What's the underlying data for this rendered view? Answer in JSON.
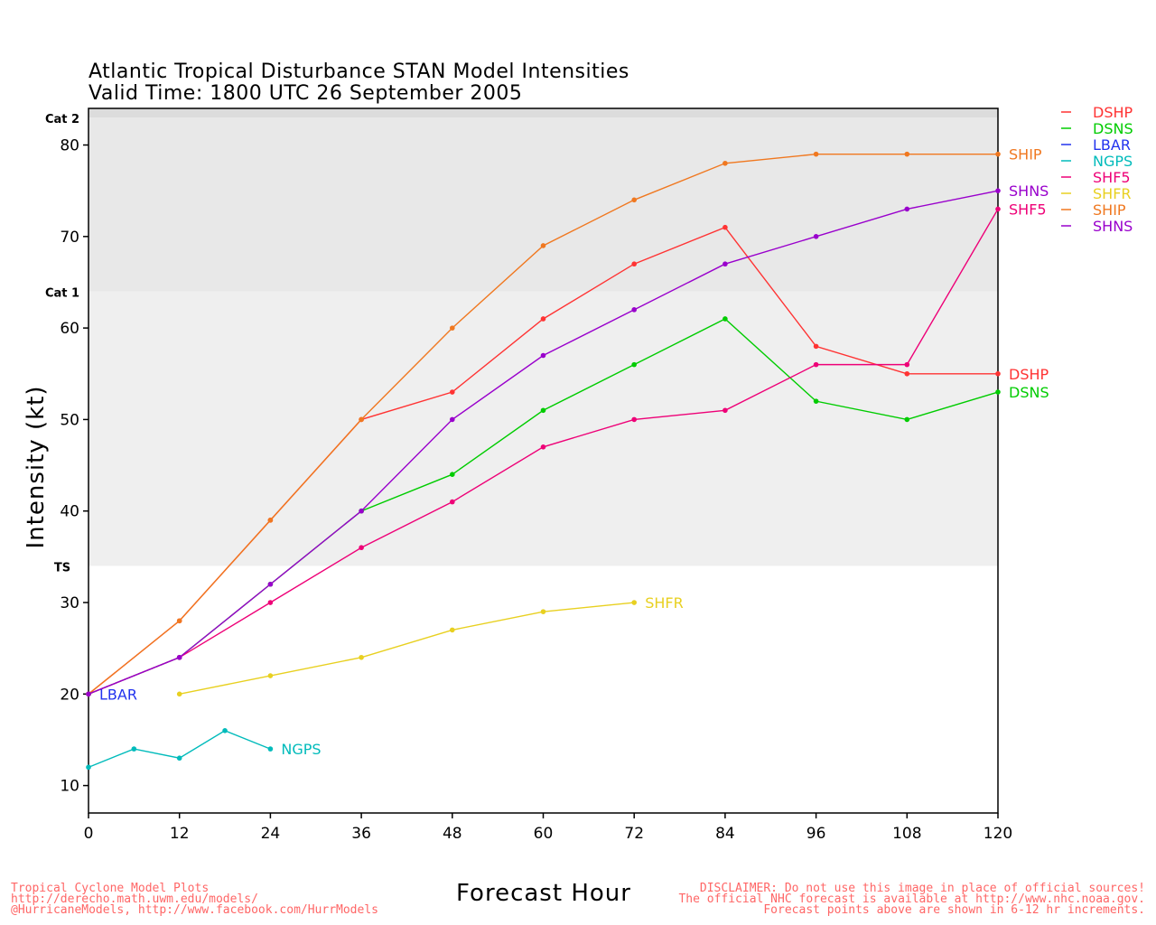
{
  "chart_data": {
    "type": "line",
    "title": "Atlantic Tropical Disturbance STAN Model Intensities",
    "subtitle": "Valid Time: 1800 UTC 26 September 2005",
    "xlabel": "Forecast Hour",
    "ylabel": "Intensity (kt)",
    "xlim": [
      0,
      120
    ],
    "ylim": [
      7,
      84
    ],
    "x_ticks": [
      0,
      12,
      24,
      36,
      48,
      60,
      72,
      84,
      96,
      108,
      120
    ],
    "y_ticks": [
      10,
      20,
      30,
      40,
      50,
      60,
      70,
      80
    ],
    "category_bands": [
      {
        "label": "TS",
        "from": 34,
        "to": 64,
        "color": "#efefef"
      },
      {
        "label": "Cat 1",
        "from": 64,
        "to": 83,
        "color": "#e8e8e8"
      },
      {
        "label": "Cat 2",
        "from": 83,
        "to": 84,
        "color": "#dcdcdc"
      }
    ],
    "legend_position": "right",
    "series": [
      {
        "name": "DSHP",
        "color": "#ff3333",
        "x": [
          0,
          12,
          24,
          36,
          48,
          60,
          72,
          84,
          96,
          108,
          120
        ],
        "y": [
          20,
          28,
          39,
          50,
          53,
          61,
          67,
          71,
          58,
          55,
          55
        ]
      },
      {
        "name": "DSNS",
        "color": "#00cc00",
        "x": [
          0,
          12,
          24,
          36,
          48,
          60,
          72,
          84,
          96,
          108,
          120
        ],
        "y": [
          20,
          24,
          32,
          40,
          44,
          51,
          56,
          61,
          52,
          50,
          53
        ]
      },
      {
        "name": "LBAR",
        "color": "#2233ee",
        "x": [
          0
        ],
        "y": [
          20
        ]
      },
      {
        "name": "NGPS",
        "color": "#00bbbb",
        "x": [
          0,
          6,
          12,
          18,
          24
        ],
        "y": [
          12,
          14,
          13,
          16,
          14
        ]
      },
      {
        "name": "SHF5",
        "color": "#ee0077",
        "x": [
          0,
          12,
          24,
          36,
          48,
          60,
          72,
          84,
          96,
          108,
          120
        ],
        "y": [
          20,
          24,
          30,
          36,
          41,
          47,
          50,
          51,
          56,
          56,
          73
        ]
      },
      {
        "name": "SHFR",
        "color": "#e8d020",
        "x": [
          12,
          24,
          36,
          48,
          60,
          72
        ],
        "y": [
          20,
          22,
          24,
          27,
          29,
          30
        ]
      },
      {
        "name": "SHIP",
        "color": "#f07820",
        "x": [
          0,
          12,
          24,
          36,
          48,
          60,
          72,
          84,
          96,
          108,
          120
        ],
        "y": [
          20,
          28,
          39,
          50,
          60,
          69,
          74,
          78,
          79,
          79,
          79
        ]
      },
      {
        "name": "SHNS",
        "color": "#9900cc",
        "x": [
          0,
          12,
          24,
          36,
          48,
          60,
          72,
          84,
          96,
          108,
          120
        ],
        "y": [
          20,
          24,
          32,
          40,
          50,
          57,
          62,
          67,
          70,
          73,
          75
        ]
      }
    ]
  },
  "footer": {
    "left_lines": [
      "Tropical Cyclone Model Plots",
      "http://derecho.math.uwm.edu/models/",
      "@HurricaneModels, http://www.facebook.com/HurrModels"
    ],
    "right_lines": [
      "DISCLAIMER: Do not use this image in place of official sources!",
      "The official NHC forecast is available at http://www.nhc.noaa.gov.",
      "Forecast points above are shown in 6-12 hr increments."
    ]
  }
}
